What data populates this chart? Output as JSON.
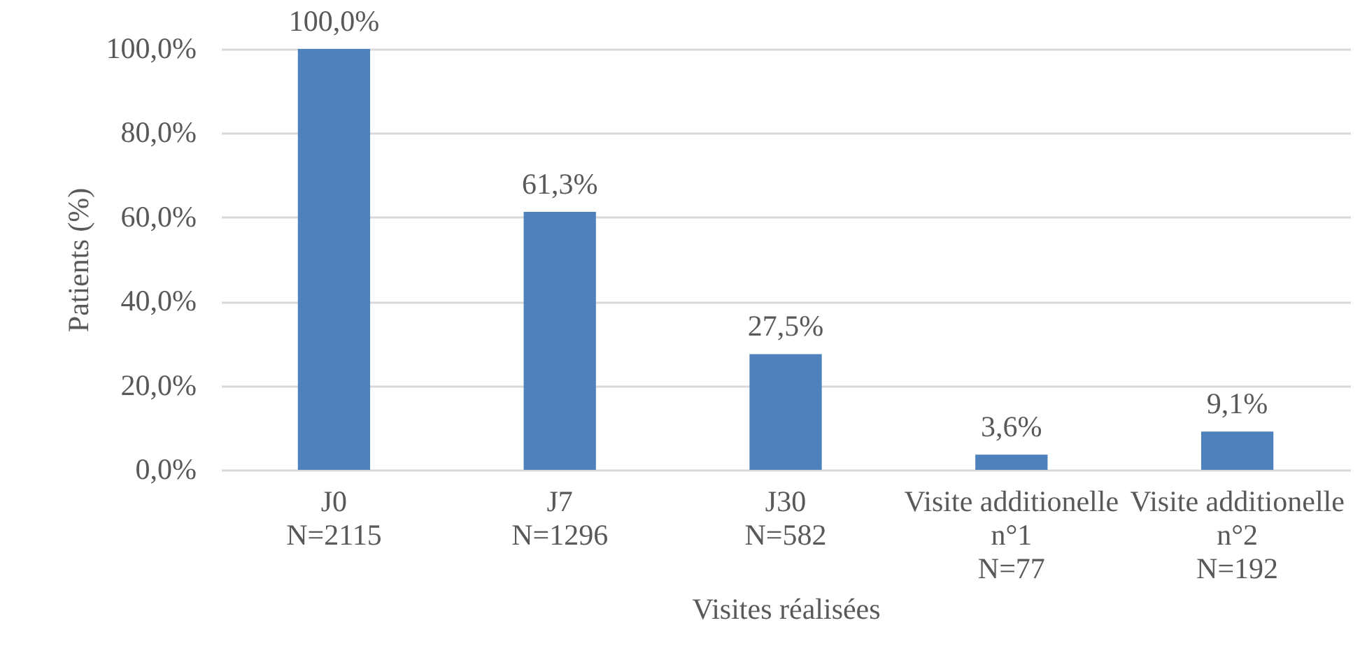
{
  "chart_data": {
    "type": "bar",
    "categories": [
      "J0\nN=2115",
      "J7\nN=1296",
      "J30\nN=582",
      "Visite additionelle\nn°1\nN=77",
      "Visite additionelle\nn°2\nN=192"
    ],
    "values": [
      100,
      61.3,
      27.5,
      3.6,
      9.1
    ],
    "value_labels": [
      "100,0%",
      "61,3%",
      "27,5%",
      "3,6%",
      "9,1%"
    ],
    "color": "#4f81bd",
    "xlabel": "Visites réalisées",
    "ylabel": "Patients (%)",
    "ylim": [
      0,
      100
    ],
    "yticks": [
      {
        "value": 0,
        "label": "0,0%"
      },
      {
        "value": 20,
        "label": "20,0%"
      },
      {
        "value": 40,
        "label": "40,0%"
      },
      {
        "value": 60,
        "label": "60,0%"
      },
      {
        "value": 80,
        "label": "80,0%"
      },
      {
        "value": 100,
        "label": "100,0%"
      }
    ],
    "grid": "y"
  }
}
